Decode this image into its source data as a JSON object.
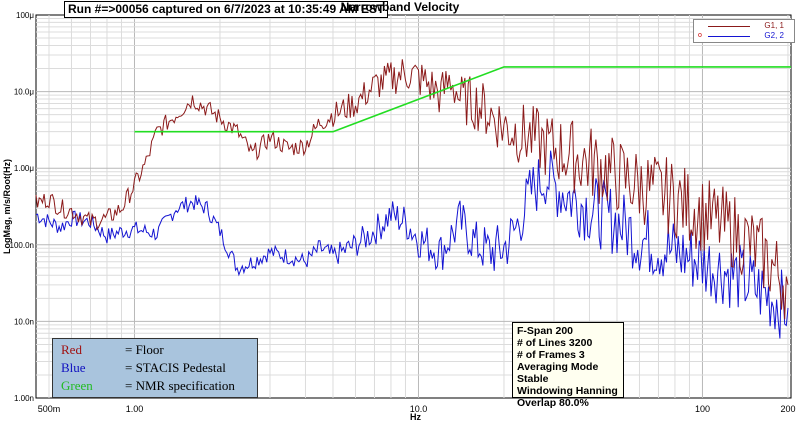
{
  "header": {
    "run_label": "Run  #=>00056 captured on 6/7/2023 at 10:35:49 AM EST",
    "title": "Narrowband Velocity"
  },
  "chart_data": {
    "type": "line",
    "title": "Narrowband Velocity",
    "xlabel": "Hz",
    "ylabel": "LogMag, m/s/Root(Hz)",
    "x_scale": "log",
    "y_scale": "log",
    "xlim": [
      0.45,
      205
    ],
    "ylim": [
      1e-09,
      0.0001
    ],
    "grid": true,
    "x_ticks": [
      {
        "value": 0.5,
        "label": "500m"
      },
      {
        "value": 1,
        "label": "1.00"
      },
      {
        "value": 10,
        "label": "10.0"
      },
      {
        "value": 100,
        "label": "100"
      },
      {
        "value": 200,
        "label": "200"
      }
    ],
    "y_ticks": [
      {
        "value": 0.0001,
        "label": "100μ"
      },
      {
        "value": 1e-05,
        "label": "10.0μ"
      },
      {
        "value": 1e-06,
        "label": "1.00μ"
      },
      {
        "value": 1e-07,
        "label": "100.0n"
      },
      {
        "value": 1e-08,
        "label": "10.0n"
      },
      {
        "value": 1e-09,
        "label": "1.00n"
      }
    ],
    "legend_position": "top-right",
    "series": [
      {
        "name": "G1, 1",
        "color": "#8b1a1a",
        "x": [
          0.45,
          0.5,
          0.55,
          0.6,
          0.7,
          0.8,
          0.9,
          1.0,
          1.1,
          1.2,
          1.4,
          1.6,
          1.8,
          2.0,
          2.3,
          2.6,
          3.0,
          3.5,
          4.0,
          4.5,
          5.0,
          6.0,
          7.0,
          8.0,
          9.0,
          10,
          11,
          12,
          13,
          14,
          16,
          18,
          20,
          25,
          30,
          40,
          50,
          60,
          80,
          100,
          130,
          160,
          200
        ],
        "y": [
          3.5e-07,
          4e-07,
          3e-07,
          2.8e-07,
          2e-07,
          2.2e-07,
          3e-07,
          6e-07,
          1.2e-06,
          3e-06,
          5e-06,
          8e-06,
          6e-06,
          4.5e-06,
          3e-06,
          1.5e-06,
          2.5e-06,
          1.8e-06,
          2e-06,
          4e-06,
          5e-06,
          7e-06,
          1.2e-05,
          1.5e-05,
          1.8e-05,
          1.5e-05,
          1.2e-05,
          9e-06,
          1.5e-05,
          8e-06,
          7e-06,
          5e-06,
          3.5e-06,
          2.5e-06,
          1.8e-06,
          1.2e-06,
          8e-07,
          6e-07,
          4e-07,
          2.5e-07,
          1.5e-07,
          8e-08,
          3e-08
        ]
      },
      {
        "name": "G2, 2",
        "color": "#1414d2",
        "x": [
          0.45,
          0.5,
          0.55,
          0.6,
          0.7,
          0.8,
          0.9,
          1.0,
          1.2,
          1.4,
          1.6,
          1.8,
          2.0,
          2.3,
          2.6,
          3.0,
          3.5,
          4.0,
          4.5,
          5.0,
          6.0,
          7.0,
          8.0,
          9.0,
          10,
          12,
          14,
          16,
          18,
          20,
          22,
          25,
          28,
          30,
          35,
          40,
          50,
          60,
          80,
          100,
          130,
          160,
          200
        ],
        "y": [
          2.5e-07,
          2e-07,
          1.7e-07,
          2.2e-07,
          2e-07,
          1.3e-07,
          1.5e-07,
          1.6e-07,
          1.4e-07,
          3e-07,
          3.6e-07,
          3e-07,
          1.5e-07,
          5e-08,
          6e-08,
          8e-08,
          7e-08,
          6e-08,
          9e-08,
          7e-08,
          1e-07,
          1.5e-07,
          2.5e-07,
          2e-07,
          1.2e-07,
          8e-08,
          2e-07,
          1e-07,
          8e-08,
          9e-08,
          1.6e-07,
          5e-07,
          8e-07,
          6e-07,
          4e-07,
          3e-07,
          2e-07,
          1.2e-07,
          8e-08,
          6e-08,
          4e-08,
          2.5e-08,
          1.5e-08
        ]
      },
      {
        "name": "",
        "color": "#22dd22",
        "x": [
          1.0,
          5.0,
          20,
          205
        ],
        "y": [
          3e-06,
          3e-06,
          2.1e-05,
          2.1e-05
        ]
      }
    ]
  },
  "legend_box": {
    "rows": [
      {
        "name": "Red",
        "desc": "= Floor",
        "color": "#a01010"
      },
      {
        "name": "Blue",
        "desc": "= STACIS Pedestal",
        "color": "#1010c0"
      },
      {
        "name": "Green",
        "desc": "= NMR specification",
        "color": "#22bb22"
      }
    ]
  },
  "params": {
    "lines": [
      "F-Span 200",
      "# of Lines 3200",
      "# of Frames 3",
      "Averaging Mode Stable",
      "Windowing Hanning",
      "Overlap 80.0%"
    ]
  },
  "series_legend": {
    "marker": "o",
    "items": [
      {
        "label": "G1, 1",
        "color": "#8b1a1a"
      },
      {
        "label": "G2, 2",
        "color": "#1414d2"
      }
    ]
  }
}
